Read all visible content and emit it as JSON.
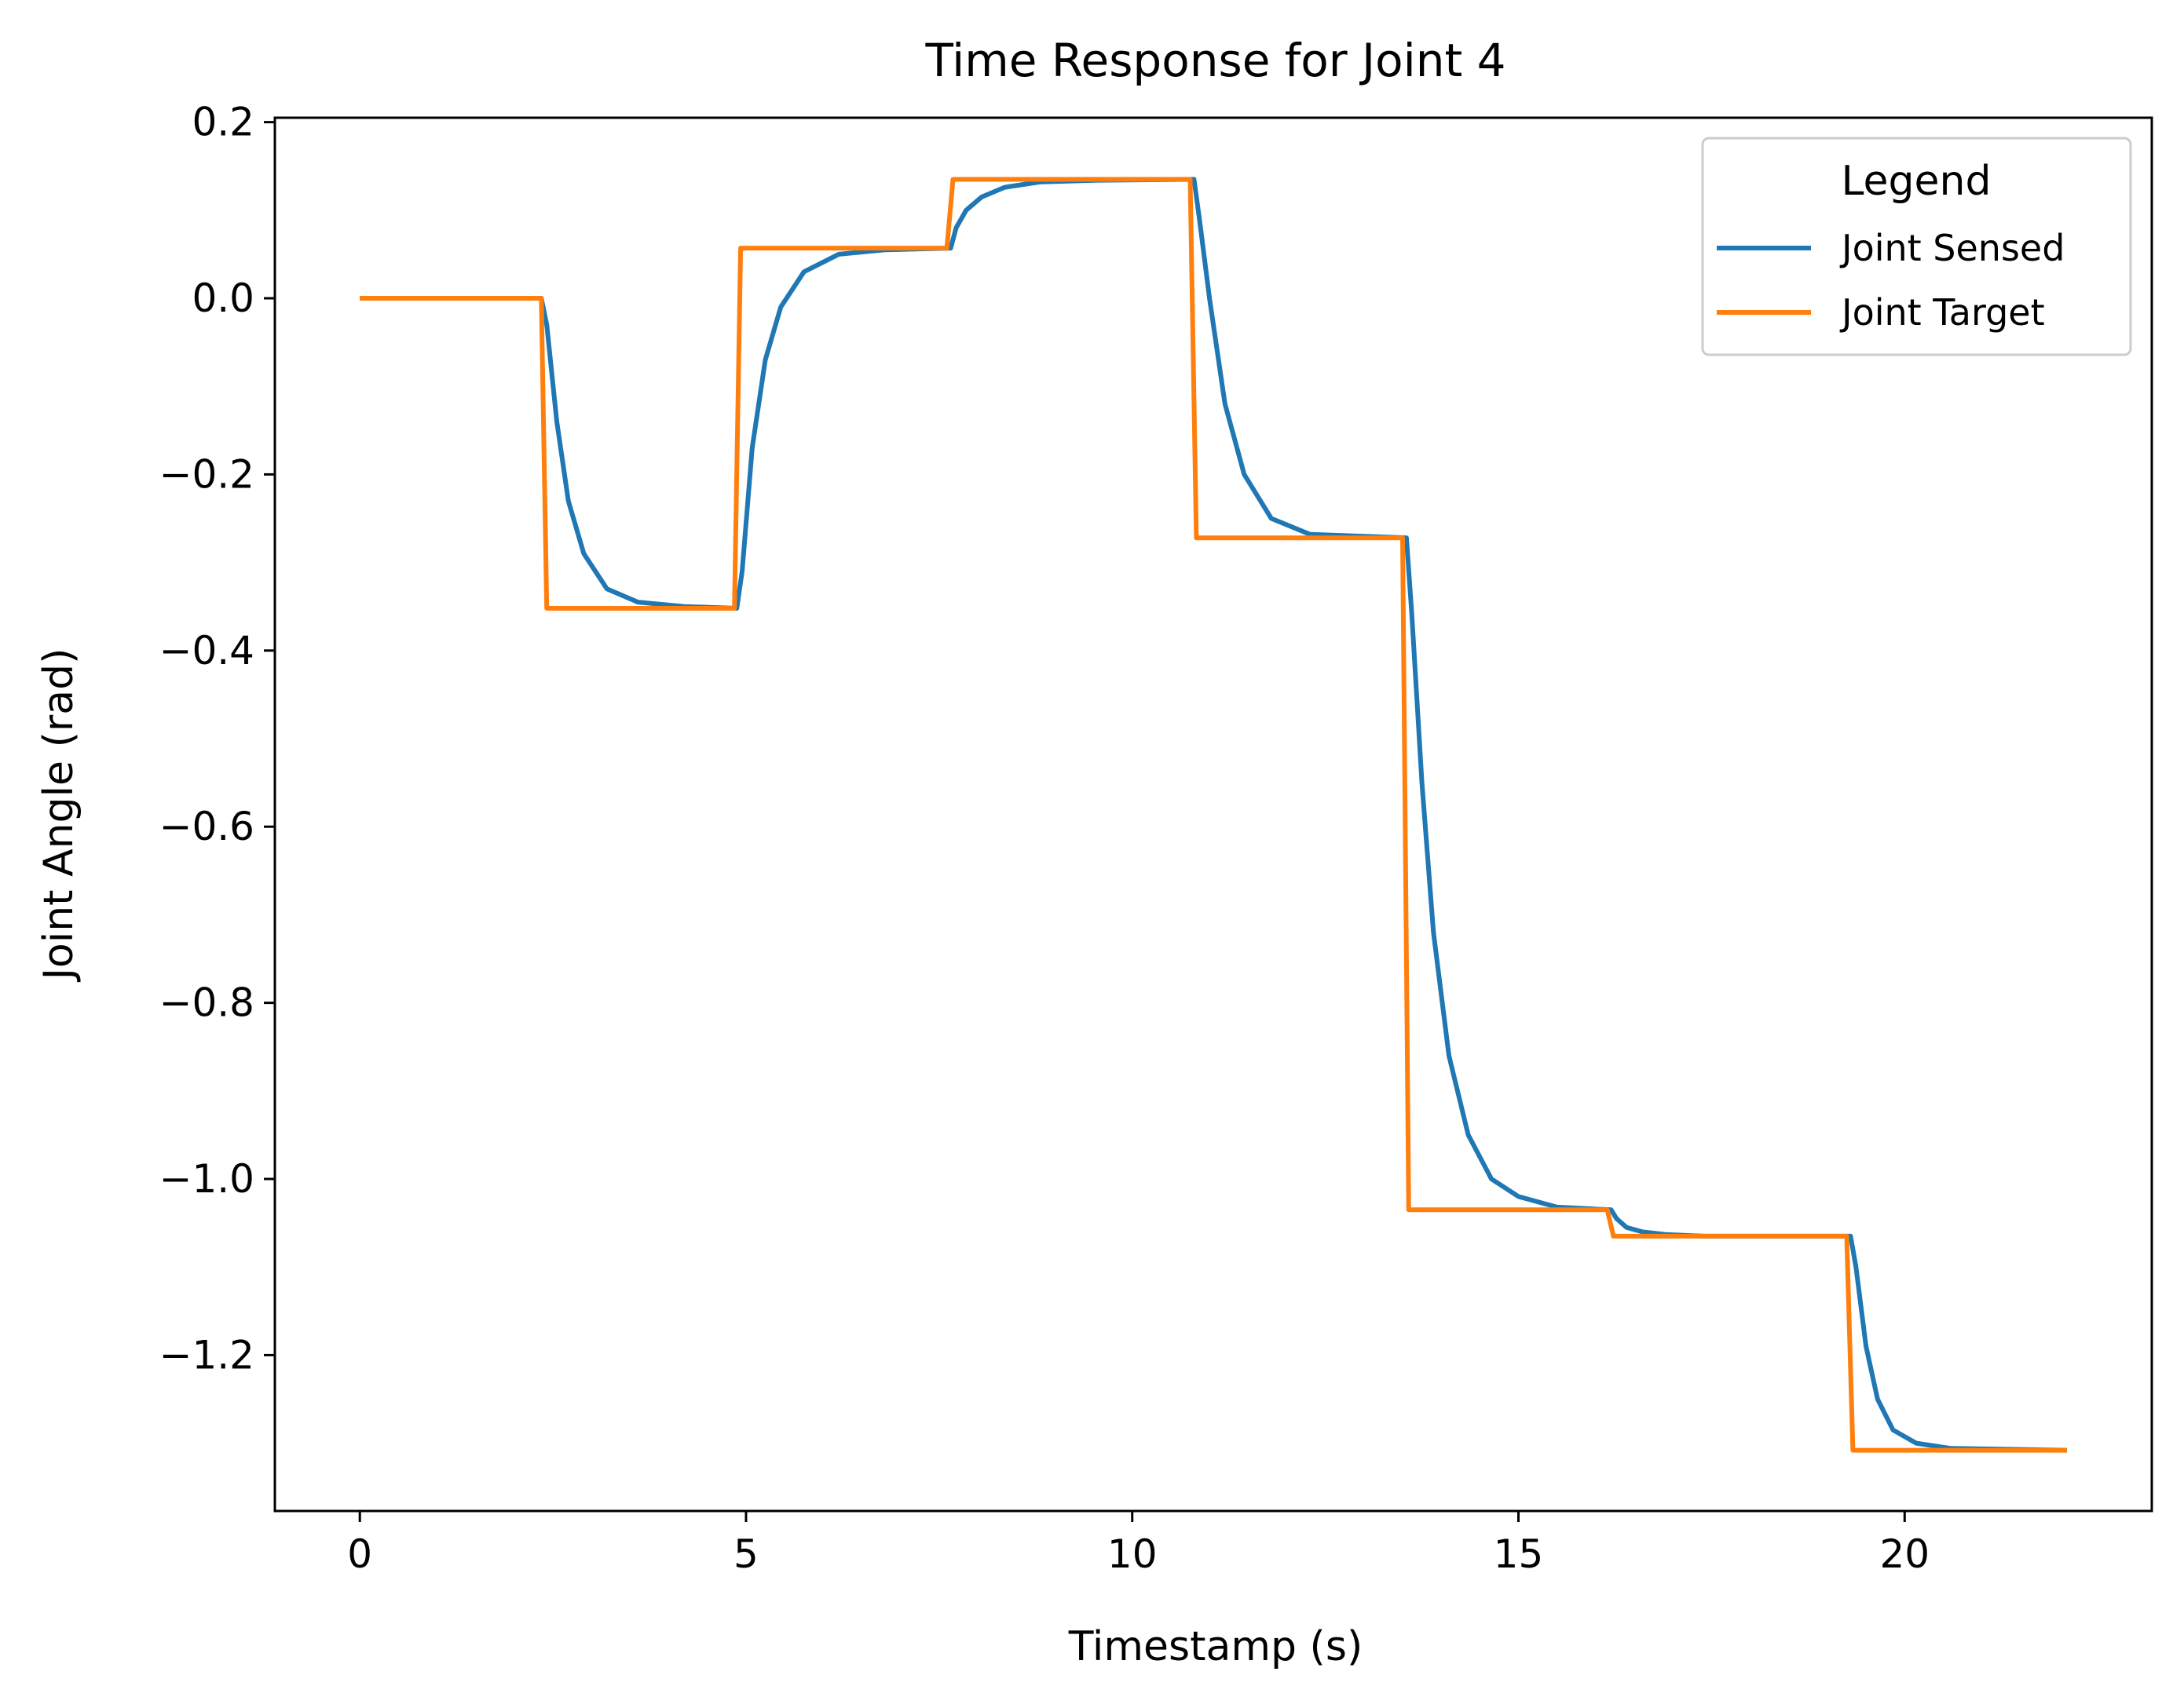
{
  "chart_data": {
    "type": "line",
    "title": "Time Response for Joint 4",
    "xlabel": "Timestamp (s)",
    "ylabel": "Joint Angle (rad)",
    "xlim": [
      -1.1,
      23.2
    ],
    "ylim": [
      -1.377,
      0.205
    ],
    "xticks": [
      0,
      5,
      10,
      15,
      20
    ],
    "xtick_labels": [
      "0",
      "5",
      "10",
      "15",
      "20"
    ],
    "yticks": [
      0.2,
      0.0,
      -0.2,
      -0.4,
      -0.6,
      -0.8,
      -1.0,
      -1.2
    ],
    "ytick_labels": [
      "0.2",
      "0.0",
      "−0.2",
      "−0.4",
      "−0.6",
      "−0.8",
      "−1.0",
      "−1.2"
    ],
    "grid": false,
    "legend": {
      "title": "Legend",
      "placement": "upper-right"
    },
    "series": [
      {
        "name": "Joint Sensed",
        "color": "#1f77b4",
        "x": [
          0,
          2.35,
          2.42,
          2.55,
          2.7,
          2.9,
          3.2,
          3.6,
          4.2,
          4.88,
          4.95,
          5.08,
          5.25,
          5.45,
          5.75,
          6.2,
          6.8,
          7.65,
          7.72,
          7.85,
          8.05,
          8.35,
          8.8,
          9.5,
          10.8,
          10.87,
          11.0,
          11.2,
          11.45,
          11.8,
          12.3,
          13.55,
          13.62,
          13.75,
          13.9,
          14.1,
          14.35,
          14.65,
          15.0,
          15.5,
          16.2,
          16.27,
          16.4,
          16.6,
          16.9,
          17.4,
          19.3,
          19.37,
          19.5,
          19.65,
          19.85,
          20.15,
          20.6,
          22.1
        ],
        "y": [
          0.0,
          0.0,
          -0.03,
          -0.14,
          -0.23,
          -0.29,
          -0.33,
          -0.345,
          -0.35,
          -0.352,
          -0.31,
          -0.17,
          -0.07,
          -0.01,
          0.03,
          0.05,
          0.055,
          0.057,
          0.08,
          0.1,
          0.115,
          0.126,
          0.132,
          0.134,
          0.135,
          0.09,
          0.0,
          -0.12,
          -0.2,
          -0.25,
          -0.268,
          -0.272,
          -0.36,
          -0.55,
          -0.72,
          -0.86,
          -0.95,
          -1.0,
          -1.02,
          -1.032,
          -1.035,
          -1.045,
          -1.055,
          -1.06,
          -1.063,
          -1.065,
          -1.065,
          -1.1,
          -1.19,
          -1.25,
          -1.285,
          -1.3,
          -1.306,
          -1.308
        ]
      },
      {
        "name": "Joint Target",
        "color": "#ff7f0e",
        "x": [
          0,
          2.35,
          2.42,
          4.85,
          4.93,
          7.6,
          7.68,
          10.75,
          10.83,
          13.5,
          13.58,
          16.15,
          16.23,
          19.25,
          19.33,
          22.1
        ],
        "y": [
          0.0,
          0.0,
          -0.352,
          -0.352,
          0.057,
          0.057,
          0.135,
          0.135,
          -0.272,
          -0.272,
          -1.035,
          -1.035,
          -1.065,
          -1.065,
          -1.308,
          -1.308
        ]
      }
    ]
  }
}
